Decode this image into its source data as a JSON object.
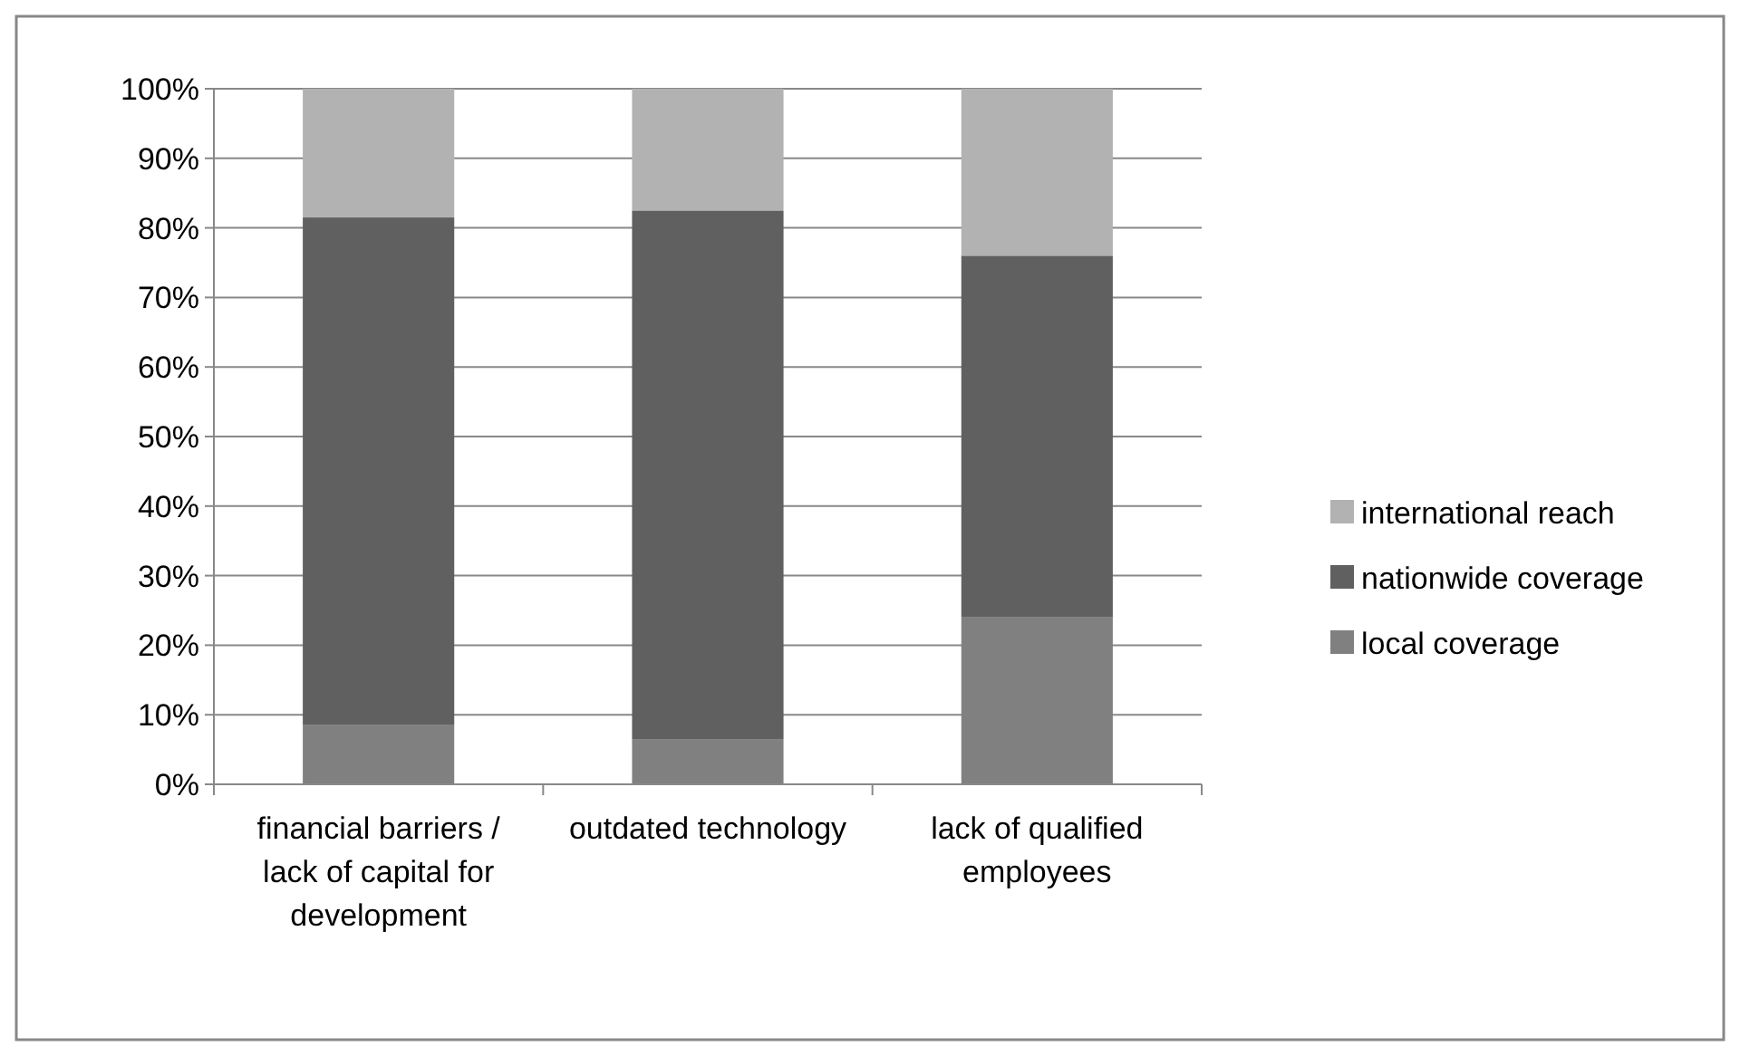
{
  "chart_data": {
    "type": "bar",
    "stacked": true,
    "categories": [
      "financial barriers / lack of capital for development",
      "outdated technology",
      "lack of qualified employees"
    ],
    "series": [
      {
        "name": "local coverage",
        "color": "#808080",
        "values": [
          8.5,
          6.5,
          24
        ]
      },
      {
        "name": "nationwide coverage",
        "color": "#606060",
        "values": [
          73,
          76,
          52
        ]
      },
      {
        "name": "international reach",
        "color": "#b2b2b2",
        "values": [
          18.5,
          17.5,
          24
        ]
      }
    ],
    "ylim": [
      0,
      100
    ],
    "yticks": [
      {
        "value": 0,
        "label": "0%"
      },
      {
        "value": 10,
        "label": "10%"
      },
      {
        "value": 20,
        "label": "20%"
      },
      {
        "value": 30,
        "label": "30%"
      },
      {
        "value": 40,
        "label": "40%"
      },
      {
        "value": 50,
        "label": "50%"
      },
      {
        "value": 60,
        "label": "60%"
      },
      {
        "value": 70,
        "label": "70%"
      },
      {
        "value": 80,
        "label": "80%"
      },
      {
        "value": 90,
        "label": "90%"
      },
      {
        "value": 100,
        "label": "100%"
      }
    ],
    "grid": "y",
    "legend": "right"
  }
}
